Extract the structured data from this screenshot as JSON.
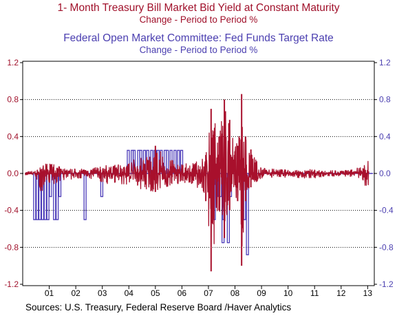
{
  "titles": {
    "series1_title": "1- Month Treasury Bill Market Bid Yield at Constant Maturity",
    "series1_subtitle": "Change - Period to Period     %",
    "series2_title": "Federal Open Market Committee: Fed Funds Target Rate",
    "series2_subtitle": "Change - Period to Period     %"
  },
  "source": "Sources:  U.S. Treasury, Federal Reserve Board /Haver Analytics",
  "chart_data": {
    "type": "line",
    "title": "1- Month Treasury Bill Market Bid Yield at Constant Maturity",
    "ylim": [
      -1.2,
      1.2
    ],
    "xlim": [
      2000.5,
      2013.75
    ],
    "left_axis_ticks": [
      "1.2",
      "0.8",
      "0.4",
      "0.0",
      "-0.4",
      "-0.8",
      "-1.2"
    ],
    "right_axis_ticks": [
      "1.2",
      "0.8",
      "0.4",
      "0.0",
      "-0.4",
      "-0.8",
      "-1.2"
    ],
    "y_tick_values": [
      1.2,
      0.8,
      0.4,
      0.0,
      -0.4,
      -0.8,
      -1.2
    ],
    "x_tick_labels": [
      "01",
      "02",
      "03",
      "04",
      "05",
      "06",
      "07",
      "08",
      "09",
      "10",
      "11",
      "12",
      "13"
    ],
    "x_tick_values": [
      2001.5,
      2002.5,
      2003.5,
      2004.5,
      2005.5,
      2006.5,
      2007.5,
      2008.5,
      2009.5,
      2010.5,
      2011.5,
      2012.5,
      2013.5
    ],
    "gridlines": "horizontal-dotted",
    "colors": {
      "tbill": "#a8102c",
      "fedfunds": "#4a3ab8",
      "text_red": "#a0102a",
      "text_blue": "#4b3fb0"
    },
    "series": [
      {
        "name": "1- Month Treasury Bill Market Bid Yield at Constant Maturity",
        "color": "#a8102c",
        "sample_every_n_months": 1,
        "envelope": [
          {
            "x": 2000.6,
            "high": 0.02,
            "low": -0.02
          },
          {
            "x": 2001.0,
            "high": 0.03,
            "low": -0.04
          },
          {
            "x": 2001.2,
            "high": 0.08,
            "low": -0.22
          },
          {
            "x": 2001.5,
            "high": 0.12,
            "low": -0.15
          },
          {
            "x": 2002.0,
            "high": 0.06,
            "low": -0.08
          },
          {
            "x": 2002.5,
            "high": 0.05,
            "low": -0.06
          },
          {
            "x": 2003.0,
            "high": 0.05,
            "low": -0.06
          },
          {
            "x": 2003.5,
            "high": 0.08,
            "low": -0.12
          },
          {
            "x": 2004.0,
            "high": 0.1,
            "low": -0.1
          },
          {
            "x": 2004.5,
            "high": 0.14,
            "low": -0.14
          },
          {
            "x": 2005.0,
            "high": 0.18,
            "low": -0.18
          },
          {
            "x": 2005.5,
            "high": 0.3,
            "low": -0.2
          },
          {
            "x": 2006.0,
            "high": 0.16,
            "low": -0.16
          },
          {
            "x": 2006.5,
            "high": 0.1,
            "low": -0.1
          },
          {
            "x": 2007.0,
            "high": 0.12,
            "low": -0.12
          },
          {
            "x": 2007.4,
            "high": 0.2,
            "low": -0.3
          },
          {
            "x": 2007.6,
            "high": 0.7,
            "low": -1.06
          },
          {
            "x": 2007.9,
            "high": 0.4,
            "low": -0.4
          },
          {
            "x": 2008.1,
            "high": 0.8,
            "low": -0.7
          },
          {
            "x": 2008.3,
            "high": 0.58,
            "low": -0.4
          },
          {
            "x": 2008.6,
            "high": 0.3,
            "low": -0.3
          },
          {
            "x": 2008.75,
            "high": 0.86,
            "low": -1.0
          },
          {
            "x": 2008.9,
            "high": 0.4,
            "low": -0.3
          },
          {
            "x": 2009.1,
            "high": 0.26,
            "low": -0.15
          },
          {
            "x": 2009.5,
            "high": 0.06,
            "low": -0.06
          },
          {
            "x": 2010.0,
            "high": 0.05,
            "low": -0.05
          },
          {
            "x": 2010.5,
            "high": 0.04,
            "low": -0.04
          },
          {
            "x": 2011.0,
            "high": 0.05,
            "low": -0.05
          },
          {
            "x": 2011.5,
            "high": 0.04,
            "low": -0.05
          },
          {
            "x": 2012.0,
            "high": 0.03,
            "low": -0.03
          },
          {
            "x": 2012.5,
            "high": 0.04,
            "low": -0.03
          },
          {
            "x": 2013.0,
            "high": 0.04,
            "low": -0.04
          },
          {
            "x": 2013.55,
            "high": 0.14,
            "low": -0.18
          }
        ]
      },
      {
        "name": "Federal Open Market Committee: Fed Funds Target Rate",
        "color": "#4a3ab8",
        "spikes": [
          {
            "x": 2000.95,
            "y": -0.5
          },
          {
            "x": 2001.05,
            "y": -0.5
          },
          {
            "x": 2001.15,
            "y": -0.5
          },
          {
            "x": 2001.25,
            "y": -0.5
          },
          {
            "x": 2001.35,
            "y": -0.5
          },
          {
            "x": 2001.45,
            "y": -0.5
          },
          {
            "x": 2001.55,
            "y": -0.25
          },
          {
            "x": 2001.7,
            "y": -0.5
          },
          {
            "x": 2001.8,
            "y": -0.5
          },
          {
            "x": 2001.9,
            "y": -0.25
          },
          {
            "x": 2002.85,
            "y": -0.5
          },
          {
            "x": 2003.48,
            "y": -0.25
          },
          {
            "x": 2004.48,
            "y": 0.25
          },
          {
            "x": 2004.63,
            "y": 0.25
          },
          {
            "x": 2004.7,
            "y": 0.25
          },
          {
            "x": 2004.87,
            "y": 0.25
          },
          {
            "x": 2004.95,
            "y": 0.25
          },
          {
            "x": 2005.09,
            "y": 0.25
          },
          {
            "x": 2005.21,
            "y": 0.25
          },
          {
            "x": 2005.36,
            "y": 0.25
          },
          {
            "x": 2005.49,
            "y": 0.25
          },
          {
            "x": 2005.6,
            "y": 0.25
          },
          {
            "x": 2005.72,
            "y": 0.25
          },
          {
            "x": 2005.87,
            "y": 0.25
          },
          {
            "x": 2005.95,
            "y": 0.25
          },
          {
            "x": 2006.09,
            "y": 0.25
          },
          {
            "x": 2006.24,
            "y": 0.25
          },
          {
            "x": 2006.37,
            "y": 0.25
          },
          {
            "x": 2006.49,
            "y": 0.25
          },
          {
            "x": 2007.72,
            "y": -0.5
          },
          {
            "x": 2007.82,
            "y": -0.25
          },
          {
            "x": 2007.95,
            "y": -0.25
          },
          {
            "x": 2008.05,
            "y": -0.75
          },
          {
            "x": 2008.08,
            "y": -0.5
          },
          {
            "x": 2008.25,
            "y": -0.75
          },
          {
            "x": 2008.33,
            "y": -0.25
          },
          {
            "x": 2008.79,
            "y": -0.5
          },
          {
            "x": 2008.86,
            "y": -0.5
          },
          {
            "x": 2008.97,
            "y": -0.88
          }
        ]
      }
    ]
  }
}
